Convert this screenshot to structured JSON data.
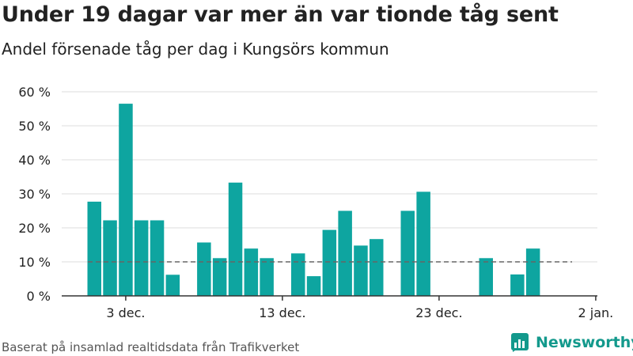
{
  "header": {
    "title": "Under 19 dagar var mer än var tionde tåg sent",
    "subtitle": "Andel försenade tåg per dag i Kungsörs kommun"
  },
  "footer": {
    "source": "Baserat på insamlad realtidsdata från Trafikverket",
    "brand": "Newsworthy"
  },
  "colors": {
    "bar": "#0ea5a0",
    "reference_line": "#666666",
    "grid": "#dddddd",
    "brand": "#13998c"
  },
  "chart_data": {
    "type": "bar",
    "title": "Under 19 dagar var mer än var tionde tåg sent",
    "subtitle": "Andel försenade tåg per dag i Kungsörs kommun",
    "xlabel": "",
    "ylabel": "",
    "ylim": [
      0,
      60
    ],
    "yticks": [
      "0 %",
      "10 %",
      "20 %",
      "30 %",
      "40 %",
      "50 %",
      "60 %"
    ],
    "xticks": [
      "3 dec.",
      "13 dec.",
      "23 dec.",
      "2 jan."
    ],
    "reference_line": 10,
    "grid": true,
    "categories": [
      "1 dec.",
      "2 dec.",
      "3 dec.",
      "4 dec.",
      "5 dec.",
      "6 dec.",
      "7 dec.",
      "8 dec.",
      "9 dec.",
      "10 dec.",
      "11 dec.",
      "12 dec.",
      "13 dec.",
      "14 dec.",
      "15 dec.",
      "16 dec.",
      "17 dec.",
      "18 dec.",
      "19 dec.",
      "20 dec.",
      "21 dec.",
      "22 dec.",
      "23 dec.",
      "24 dec.",
      "25 dec.",
      "26 dec.",
      "27 dec.",
      "28 dec.",
      "29 dec.",
      "30 dec.",
      "31 dec."
    ],
    "values": [
      27.7,
      22.2,
      56.5,
      22.2,
      22.2,
      6.2,
      0,
      15.7,
      11.1,
      33.3,
      13.9,
      11.1,
      0,
      12.5,
      5.8,
      19.4,
      25.0,
      14.8,
      16.7,
      0,
      25.0,
      30.6,
      0,
      0,
      0,
      11.1,
      0,
      6.3,
      13.9,
      0,
      0
    ]
  }
}
